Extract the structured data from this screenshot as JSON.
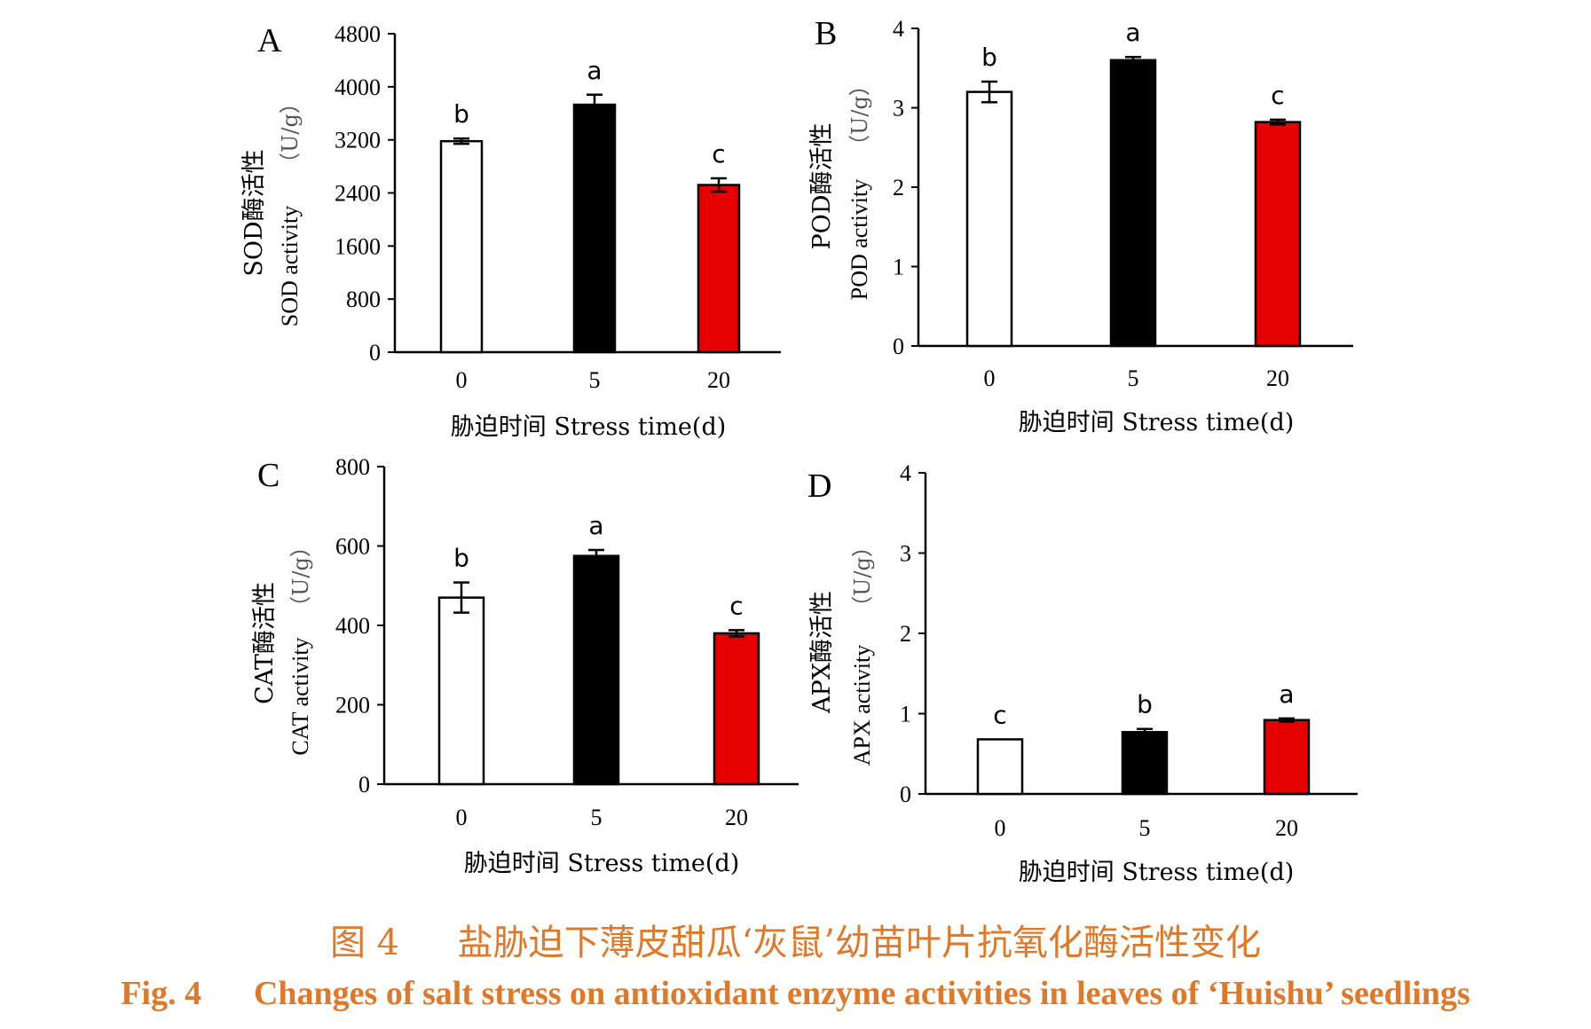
{
  "caption": {
    "cn_number": "图 4",
    "cn_text": "盐胁迫下薄皮甜瓜‘灰鼠’幼苗叶片抗氧化酶活性变化",
    "en_number": "Fig. 4",
    "en_text": "Changes of salt stress on antioxidant enzyme activities in leaves of ‘Huishu’ seedlings"
  },
  "chart_data": [
    {
      "type": "bar",
      "panel": "A",
      "categories": [
        "0",
        "5",
        "20"
      ],
      "values": [
        3180,
        3730,
        2520
      ],
      "errors": [
        40,
        150,
        100
      ],
      "letters": [
        "b",
        "a",
        "c"
      ],
      "colors": [
        "#ffffff",
        "#000000",
        "#e60000"
      ],
      "ylabel_cn": "SOD酶活性",
      "ylabel_en": "SOD activity",
      "ylabel_unit": "（U/g）",
      "xlabel": "胁迫时间  Stress time(d)",
      "ylim": [
        0,
        4800
      ],
      "yticks": [
        "0",
        "800",
        "1600",
        "2400",
        "3200",
        "4000",
        "4800"
      ]
    },
    {
      "type": "bar",
      "panel": "B",
      "categories": [
        "0",
        "5",
        "20"
      ],
      "values": [
        3.2,
        3.6,
        2.82
      ],
      "errors": [
        0.13,
        0.04,
        0.03
      ],
      "letters": [
        "b",
        "a",
        "c"
      ],
      "colors": [
        "#ffffff",
        "#000000",
        "#e60000"
      ],
      "ylabel_cn": "POD酶活性",
      "ylabel_en": "POD activity",
      "ylabel_unit": "（U/g）",
      "xlabel": "胁迫时间  Stress time(d)",
      "ylim": [
        0,
        4
      ],
      "yticks": [
        "0",
        "1",
        "2",
        "3",
        "4"
      ]
    },
    {
      "type": "bar",
      "panel": "C",
      "categories": [
        "0",
        "5",
        "20"
      ],
      "values": [
        470,
        575,
        380
      ],
      "errors": [
        38,
        15,
        8
      ],
      "letters": [
        "b",
        "a",
        "c"
      ],
      "colors": [
        "#ffffff",
        "#000000",
        "#e60000"
      ],
      "ylabel_cn": "CAT酶活性",
      "ylabel_en": "CAT activity",
      "ylabel_unit": "（U/g）",
      "xlabel": "胁迫时间  Stress time(d)",
      "ylim": [
        0,
        800
      ],
      "yticks": [
        "0",
        "200",
        "400",
        "600",
        "800"
      ]
    },
    {
      "type": "bar",
      "panel": "D",
      "categories": [
        "0",
        "5",
        "20"
      ],
      "values": [
        0.68,
        0.77,
        0.92
      ],
      "errors": [
        0.0,
        0.04,
        0.02
      ],
      "letters": [
        "c",
        "b",
        "a"
      ],
      "colors": [
        "#ffffff",
        "#000000",
        "#e60000"
      ],
      "ylabel_cn": "APX酶活性",
      "ylabel_en": "APX activity",
      "ylabel_unit": "（U/g）",
      "xlabel": "胁迫时间  Stress time(d)",
      "ylim": [
        0,
        4
      ],
      "yticks": [
        "0",
        "1",
        "2",
        "3",
        "4"
      ]
    }
  ]
}
